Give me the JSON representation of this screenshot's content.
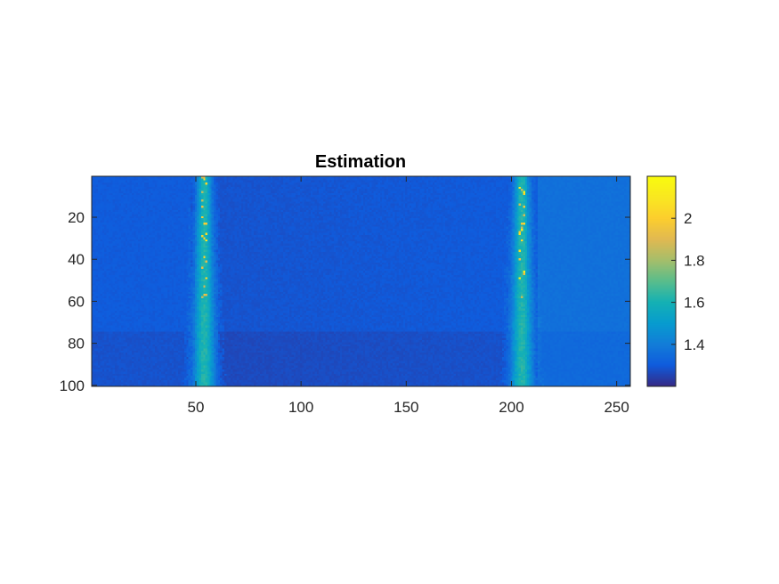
{
  "chart_data": {
    "type": "heatmap",
    "title": "Estimation",
    "xlabel": "",
    "ylabel": "",
    "colormap": "parula",
    "x_range": [
      1,
      256
    ],
    "y_range": [
      1,
      100
    ],
    "y_direction": "reversed",
    "grid": false,
    "x_ticks": [
      50,
      100,
      150,
      200,
      250
    ],
    "x_tick_labels": [
      "50",
      "100",
      "150",
      "200",
      "250"
    ],
    "y_ticks": [
      20,
      40,
      60,
      80,
      100
    ],
    "y_tick_labels": [
      "20",
      "40",
      "60",
      "80",
      "100"
    ],
    "colorbar": {
      "location": "right",
      "clim": [
        1.2,
        2.2
      ],
      "ticks": [
        1.4,
        1.6,
        1.8,
        2
      ],
      "tick_labels": [
        "1.4",
        "1.6",
        "1.8",
        "2"
      ]
    },
    "data_description": {
      "background_left_x_1_to_48": 1.3,
      "background_middle_x_60_to_200": 1.28,
      "background_right_x_210_to_256": 1.36,
      "background_lower_band_y_75_to_100_offset": -0.02,
      "bright_bands": [
        {
          "x_center": 54,
          "half_width": 4,
          "peak_value": 1.62,
          "sparse_spikes_max": 2.1
        },
        {
          "x_center": 205,
          "half_width": 4,
          "peak_value": 1.62,
          "sparse_spikes_max": 2.15
        }
      ]
    }
  }
}
